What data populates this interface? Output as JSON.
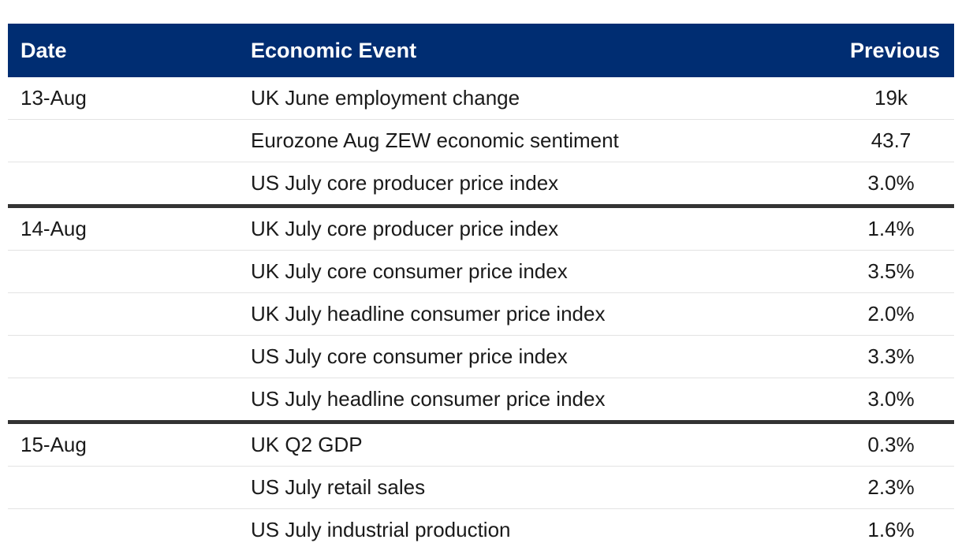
{
  "header": {
    "date": "Date",
    "event": "Economic Event",
    "previous": "Previous"
  },
  "groups": [
    {
      "date": "13-Aug",
      "rows": [
        {
          "event": "UK June employment change",
          "previous": "19k"
        },
        {
          "event": "Eurozone Aug ZEW economic sentiment",
          "previous": "43.7"
        },
        {
          "event": "US July core producer price index",
          "previous": "3.0%"
        }
      ]
    },
    {
      "date": "14-Aug",
      "rows": [
        {
          "event": "UK July core producer price index",
          "previous": "1.4%"
        },
        {
          "event": "UK July core consumer price index",
          "previous": "3.5%"
        },
        {
          "event": "UK July headline consumer price index",
          "previous": "2.0%"
        },
        {
          "event": "US July core consumer price index",
          "previous": "3.3%"
        },
        {
          "event": "US July headline consumer price index",
          "previous": "3.0%"
        }
      ]
    },
    {
      "date": "15-Aug",
      "rows": [
        {
          "event": "UK Q2 GDP",
          "previous": "0.3%"
        },
        {
          "event": "US July retail sales",
          "previous": "2.3%"
        },
        {
          "event": "US July industrial production",
          "previous": "1.6%"
        }
      ]
    }
  ],
  "colors": {
    "header_bg": "#002d72",
    "header_text": "#ffffff",
    "group_divider": "#333333"
  }
}
